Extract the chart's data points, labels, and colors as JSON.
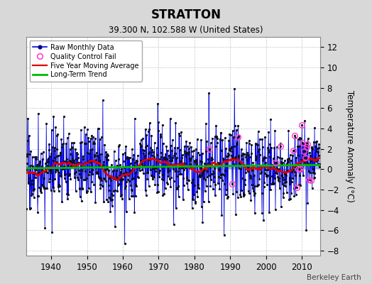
{
  "title": "STRATTON",
  "subtitle": "39.300 N, 102.588 W (United States)",
  "ylabel": "Temperature Anomaly (°C)",
  "credit": "Berkeley Earth",
  "xlim": [
    1933,
    2015
  ],
  "ylim": [
    -8.5,
    13
  ],
  "yticks": [
    -8,
    -6,
    -4,
    -2,
    0,
    2,
    4,
    6,
    8,
    10,
    12
  ],
  "xticks": [
    1940,
    1950,
    1960,
    1970,
    1980,
    1990,
    2000,
    2010
  ],
  "bg_color": "#d8d8d8",
  "plot_bg_color": "#ffffff",
  "grid_color": "#b0b8c8",
  "line_color": "#0000dd",
  "fill_color": "#6677ee",
  "ma_color": "#dd0000",
  "trend_color": "#00bb00",
  "dot_color": "#111111",
  "qc_color": "#ff44cc",
  "seed": 17,
  "n_years_start": 1933,
  "n_years_end": 2014,
  "trend_slope": 0.004,
  "trend_intercept": 0.25,
  "noise_std": 1.8
}
